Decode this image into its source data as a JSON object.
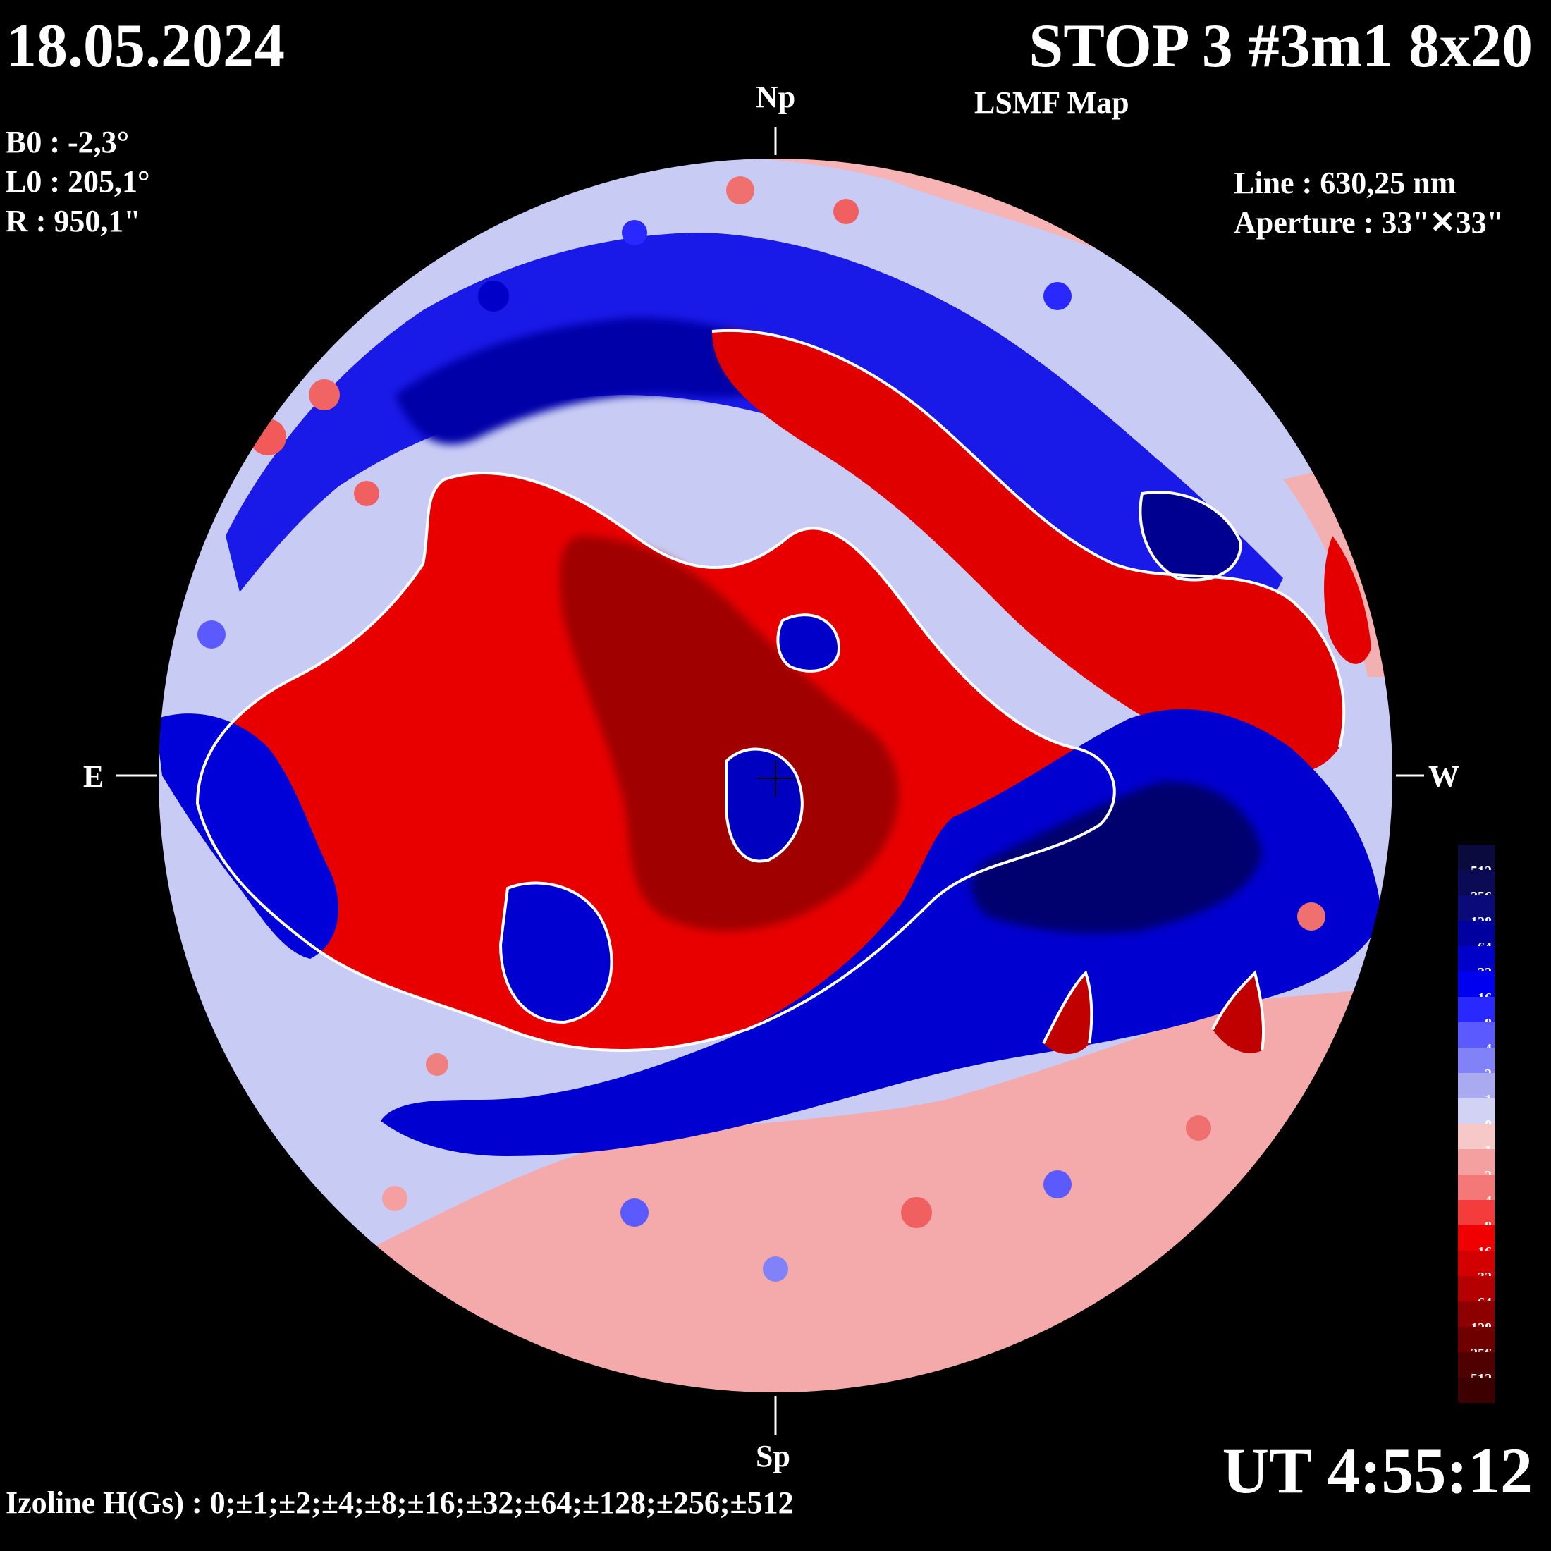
{
  "header": {
    "date": "18.05.2024",
    "title": "STOP 3 #3m1 8x20",
    "subtitle": "LSMF  Map"
  },
  "parameters": {
    "b0": "B0 : -2,3°",
    "l0": "L0 : 205,1°",
    "radius": "R  : 950,1\""
  },
  "observation": {
    "line": "Line :  630,25 nm",
    "aperture": "Aperture : 33\"✕33\""
  },
  "compass": {
    "north": "Np",
    "south": "Sp",
    "east": "E",
    "west": "W"
  },
  "time": "UT 4:55:12",
  "izoline": "Izoline H(Gs) : 0;±1;±2;±4;±8;±16;±32;±64;±128;±256;±512",
  "colors": {
    "background": "#000000",
    "disk_neutral_neg": "#c8ccf4",
    "disk_neutral_pos": "#f8c8c8",
    "strong_negative": "#0000e0",
    "strong_positive": "#e00000",
    "contour_zero": "#ffffff"
  },
  "colorbar": {
    "levels": [
      {
        "label": "-512",
        "color": "#0a0a3c"
      },
      {
        "label": "-256",
        "color": "#0a0a55"
      },
      {
        "label": "-128",
        "color": "#0a0a78"
      },
      {
        "label": "-64",
        "color": "#0000a0"
      },
      {
        "label": "-32",
        "color": "#0000c8"
      },
      {
        "label": "-16",
        "color": "#0000f0"
      },
      {
        "label": "-8",
        "color": "#2828ff"
      },
      {
        "label": "-4",
        "color": "#5a5aff"
      },
      {
        "label": "-2",
        "color": "#8282f8"
      },
      {
        "label": "-1",
        "color": "#aaaaf0"
      },
      {
        "label": "0",
        "color": "#d2d2f4"
      },
      {
        "label": "1",
        "color": "#f6c8c8"
      },
      {
        "label": "2",
        "color": "#f4a0a0"
      },
      {
        "label": "4",
        "color": "#f47878"
      },
      {
        "label": "8",
        "color": "#f43c3c"
      },
      {
        "label": "16",
        "color": "#f00000"
      },
      {
        "label": "32",
        "color": "#d20000"
      },
      {
        "label": "64",
        "color": "#b40000"
      },
      {
        "label": "128",
        "color": "#8c0000"
      },
      {
        "label": "256",
        "color": "#6e0000"
      },
      {
        "label": "512",
        "color": "#500000"
      },
      {
        "label": "",
        "color": "#3c0000"
      }
    ]
  }
}
